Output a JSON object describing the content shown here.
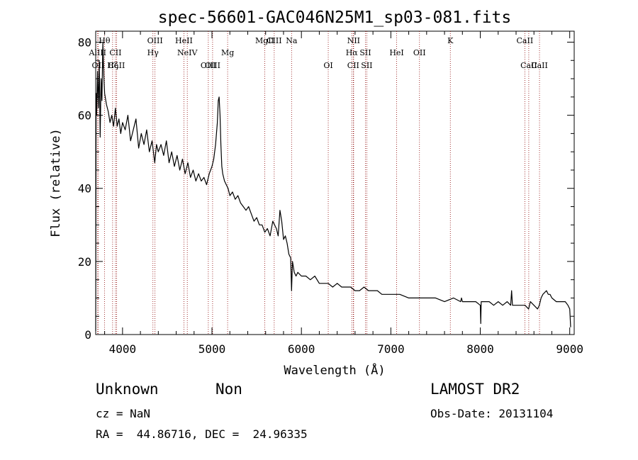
{
  "chart_data": {
    "type": "line",
    "title": "spec-56601-GAC046N25M1_sp03-081.fits",
    "xlabel": "Wavelength (Å)",
    "ylabel": "Flux (relative)",
    "xlim": [
      3700,
      9050
    ],
    "ylim": [
      0,
      83
    ],
    "xticks": [
      4000,
      5000,
      6000,
      7000,
      8000,
      9000
    ],
    "yticks": [
      0,
      20,
      40,
      60,
      80
    ],
    "series": [
      {
        "name": "flux",
        "x": [
          3700,
          3705,
          3710,
          3720,
          3730,
          3740,
          3750,
          3760,
          3770,
          3780,
          3790,
          3800,
          3820,
          3840,
          3860,
          3880,
          3900,
          3920,
          3940,
          3960,
          3980,
          4000,
          4030,
          4060,
          4090,
          4120,
          4150,
          4180,
          4210,
          4240,
          4270,
          4300,
          4330,
          4360,
          4380,
          4400,
          4430,
          4460,
          4490,
          4520,
          4550,
          4580,
          4610,
          4640,
          4670,
          4700,
          4730,
          4760,
          4790,
          4820,
          4850,
          4880,
          4910,
          4940,
          4970,
          5000,
          5020,
          5040,
          5060,
          5070,
          5080,
          5090,
          5100,
          5110,
          5120,
          5140,
          5160,
          5180,
          5200,
          5230,
          5260,
          5290,
          5320,
          5350,
          5380,
          5410,
          5440,
          5470,
          5500,
          5530,
          5560,
          5590,
          5620,
          5650,
          5680,
          5700,
          5720,
          5740,
          5760,
          5780,
          5800,
          5820,
          5840,
          5860,
          5880,
          5890,
          5900,
          5920,
          5940,
          5960,
          6000,
          6050,
          6100,
          6150,
          6200,
          6250,
          6300,
          6350,
          6400,
          6450,
          6500,
          6550,
          6600,
          6650,
          6700,
          6750,
          6800,
          6850,
          6900,
          6950,
          7000,
          7100,
          7200,
          7300,
          7400,
          7500,
          7600,
          7700,
          7780,
          7790,
          7800,
          7850,
          7900,
          7950,
          8000,
          8005,
          8010,
          8050,
          8100,
          8150,
          8200,
          8250,
          8300,
          8340,
          8350,
          8360,
          8400,
          8450,
          8500,
          8540,
          8560,
          8600,
          8640,
          8660,
          8680,
          8700,
          8740,
          8760,
          8780,
          8800,
          8850,
          8900,
          8950,
          8980,
          9000,
          9010
        ],
        "y": [
          1,
          66,
          60,
          72,
          62,
          75,
          54,
          70,
          64,
          80,
          71,
          66,
          63,
          61,
          58,
          60,
          57,
          62,
          57,
          59,
          55,
          58,
          56,
          60,
          53,
          56,
          59,
          51,
          55,
          52,
          56,
          50,
          53,
          47,
          52,
          50,
          52,
          49,
          53,
          47,
          50,
          46,
          49,
          45,
          48,
          44,
          47,
          43,
          45,
          42,
          44,
          42,
          43,
          41,
          44,
          46,
          48,
          52,
          58,
          64,
          65,
          60,
          52,
          46,
          44,
          42,
          41,
          40,
          38,
          39,
          37,
          38,
          36,
          35,
          34,
          35,
          33,
          31,
          32,
          30,
          30,
          28,
          29,
          27,
          31,
          30,
          29,
          27,
          34,
          31,
          26,
          27,
          25,
          22,
          21,
          12,
          20,
          17,
          16,
          17,
          16,
          16,
          15,
          16,
          14,
          14,
          14,
          13,
          14,
          13,
          13,
          13,
          12,
          12,
          13,
          12,
          12,
          12,
          11,
          11,
          11,
          11,
          10,
          10,
          10,
          10,
          9,
          10,
          9,
          10,
          9,
          9,
          9,
          9,
          8,
          3,
          9,
          9,
          9,
          8,
          9,
          8,
          9,
          8,
          12,
          8,
          8,
          8,
          8,
          7,
          9,
          8,
          7,
          8,
          10,
          11,
          12,
          11,
          11,
          10,
          9,
          9,
          9,
          8,
          7,
          2
        ]
      }
    ],
    "line_markers": [
      {
        "label": "Hθ",
        "wavelength": 3798,
        "row": 1
      },
      {
        "label": "AlIII",
        "wavelength": 3722,
        "row": 2
      },
      {
        "label": "CII",
        "wavelength": 3921,
        "row": 2
      },
      {
        "label": "OII",
        "wavelength": 3727,
        "row": 3
      },
      {
        "label": "Hζ",
        "wavelength": 3889,
        "row": 3
      },
      {
        "label": "CaII",
        "wavelength": 3934,
        "row": 3
      },
      {
        "label": "OIII",
        "wavelength": 4363,
        "row": 1
      },
      {
        "label": "Hγ",
        "wavelength": 4340,
        "row": 2
      },
      {
        "label": "HeII",
        "wavelength": 4686,
        "row": 1
      },
      {
        "label": "NeIV",
        "wavelength": 4724,
        "row": 2
      },
      {
        "label": "OIII",
        "wavelength": 4959,
        "row": 3
      },
      {
        "label": "OIII",
        "wavelength": 5007,
        "row": 3
      },
      {
        "label": "Mg",
        "wavelength": 5175,
        "row": 2
      },
      {
        "label": "MgII",
        "wavelength": 5590,
        "row": 1
      },
      {
        "label": "CIII",
        "wavelength": 5696,
        "row": 1
      },
      {
        "label": "Na",
        "wavelength": 5890,
        "row": 1
      },
      {
        "label": "OI",
        "wavelength": 6300,
        "row": 3
      },
      {
        "label": "NII",
        "wavelength": 6584,
        "row": 1
      },
      {
        "label": "Hα",
        "wavelength": 6563,
        "row": 2
      },
      {
        "label": "SII",
        "wavelength": 6716,
        "row": 2
      },
      {
        "label": "SII",
        "wavelength": 6731,
        "row": 3
      },
      {
        "label": "CII",
        "wavelength": 6580,
        "row": 3
      },
      {
        "label": "OII",
        "wavelength": 7320,
        "row": 2
      },
      {
        "label": "K",
        "wavelength": 7665,
        "row": 1
      },
      {
        "label": "HeI",
        "wavelength": 7065,
        "row": 2
      },
      {
        "label": "CaII",
        "wavelength": 8498,
        "row": 1
      },
      {
        "label": "CaII",
        "wavelength": 8542,
        "row": 3
      },
      {
        "label": "CaII",
        "wavelength": 8662,
        "row": 3
      }
    ]
  },
  "footer": {
    "class_label": "Unknown",
    "subclass_label": "Non",
    "survey": "LAMOST DR2",
    "cz": "cz = NaN",
    "obs_date": "Obs-Date: 20131104",
    "coords": "RA =  44.86716, DEC =  24.96335"
  },
  "colors": {
    "spectrum": "#000000",
    "marker_line": "#8b0000"
  }
}
